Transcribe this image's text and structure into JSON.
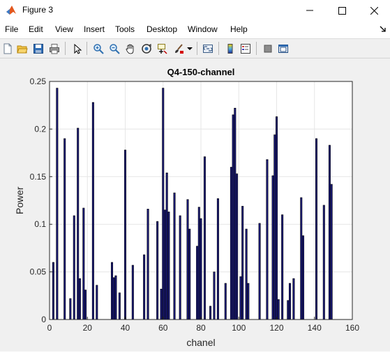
{
  "window": {
    "title": "Figure 3",
    "icons": {
      "app": "matlab-logo-icon",
      "minimize": "minimize-icon",
      "maximize": "maximize-icon",
      "close": "close-icon"
    }
  },
  "menu": {
    "items": [
      "File",
      "Edit",
      "View",
      "Insert",
      "Tools",
      "Desktop",
      "Window",
      "Help"
    ],
    "end_icon": "dock-arrow-icon"
  },
  "toolbar": {
    "icons": [
      "new-figure-icon",
      "open-file-icon",
      "save-icon",
      "print-icon",
      "select-arrow-icon",
      "zoom-in-icon",
      "zoom-out-icon",
      "pan-hand-icon",
      "rotate-3d-icon",
      "data-cursor-icon",
      "brush-icon",
      "brush-dropdown-icon",
      "link-plot-icon",
      "insert-colorbar-icon",
      "insert-legend-icon",
      "hide-plot-tools-icon",
      "show-plot-tools-icon"
    ]
  },
  "chart_data": {
    "type": "bar",
    "title": "Q4-150-channel",
    "xlabel": "chanel",
    "ylabel": "Power",
    "xlim": [
      0,
      160
    ],
    "ylim": [
      0,
      0.25
    ],
    "xticks": [
      "0",
      "20",
      "40",
      "60",
      "80",
      "100",
      "120",
      "140",
      "160"
    ],
    "yticks": [
      "0",
      "0.05",
      "0.1",
      "0.15",
      "0.2",
      "0.25"
    ],
    "grid": true,
    "bar_color": "#1a1a7a",
    "x": [
      2,
      4,
      8,
      11,
      13,
      15,
      16,
      18,
      19,
      23,
      25,
      33,
      34,
      35,
      37,
      40,
      44,
      50,
      52,
      57,
      59,
      60,
      61,
      62,
      63,
      66,
      69,
      73,
      74,
      78,
      79,
      80,
      82,
      85,
      87,
      89,
      93,
      96,
      97,
      98,
      99,
      101,
      102,
      104,
      105,
      111,
      115,
      118,
      119,
      120,
      121,
      123,
      126,
      127,
      129,
      133,
      134,
      141,
      145,
      148,
      149
    ],
    "values": [
      0.06,
      0.243,
      0.19,
      0.022,
      0.109,
      0.201,
      0.043,
      0.117,
      0.031,
      0.228,
      0.036,
      0.06,
      0.044,
      0.046,
      0.028,
      0.178,
      0.057,
      0.068,
      0.116,
      0.103,
      0.032,
      0.243,
      0.115,
      0.154,
      0.113,
      0.133,
      0.109,
      0.126,
      0.095,
      0.077,
      0.118,
      0.106,
      0.171,
      0.014,
      0.05,
      0.127,
      0.038,
      0.16,
      0.215,
      0.222,
      0.153,
      0.045,
      0.119,
      0.095,
      0.038,
      0.101,
      0.168,
      0.151,
      0.194,
      0.213,
      0.021,
      0.11,
      0.02,
      0.038,
      0.043,
      0.128,
      0.088,
      0.19,
      0.12,
      0.183,
      0.142
    ]
  }
}
